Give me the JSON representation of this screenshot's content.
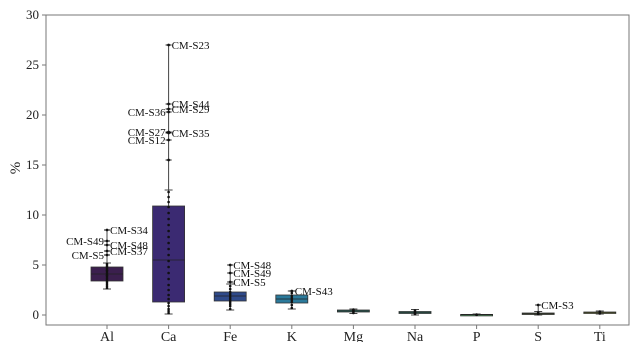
{
  "chart_data": {
    "type": "box",
    "title": "",
    "xlabel": "",
    "ylabel": "%",
    "ylim": [
      0,
      30
    ],
    "yticks": [
      0,
      5,
      10,
      15,
      20,
      25,
      30
    ],
    "grid": false,
    "legend": "none",
    "categories": [
      "Al",
      "Ca",
      "Fe",
      "K",
      "Mg",
      "Na",
      "P",
      "S",
      "Ti"
    ],
    "boxes": [
      {
        "category": "Al",
        "color": "#3b1f4e",
        "whisker_low": 2.6,
        "q1": 3.4,
        "median": 4.1,
        "q3": 4.8,
        "whisker_high": 5.2,
        "points": [
          2.7,
          2.9,
          3.1,
          3.3,
          3.5,
          3.7,
          3.9,
          4.0,
          4.2,
          4.4,
          4.5,
          4.7,
          4.9,
          5.1
        ]
      },
      {
        "category": "Ca",
        "color": "#3b2a72",
        "whisker_low": 0.1,
        "q1": 1.3,
        "median": 5.5,
        "q3": 10.9,
        "whisker_high": 12.5,
        "points": [
          0.2,
          0.4,
          0.6,
          0.9,
          1.2,
          1.6,
          2.0,
          2.5,
          3.0,
          3.6,
          4.2,
          4.8,
          5.4,
          6.0,
          6.6,
          7.2,
          7.8,
          8.4,
          9.0,
          9.6,
          10.2,
          10.8,
          11.3,
          11.8,
          12.3
        ]
      },
      {
        "category": "Fe",
        "color": "#2f4a8a",
        "whisker_low": 0.5,
        "q1": 1.4,
        "median": 1.9,
        "q3": 2.3,
        "whisker_high": 3.1,
        "points": [
          0.6,
          0.9,
          1.1,
          1.3,
          1.5,
          1.7,
          1.9,
          2.1,
          2.3,
          2.6,
          2.9
        ]
      },
      {
        "category": "K",
        "color": "#2b7a9b",
        "whisker_low": 0.6,
        "q1": 1.2,
        "median": 1.6,
        "q3": 2.0,
        "whisker_high": 2.4,
        "points": [
          0.7,
          1.0,
          1.3,
          1.5,
          1.7,
          1.9,
          2.2
        ]
      },
      {
        "category": "Mg",
        "color": "#2a9c8c",
        "whisker_low": 0.15,
        "q1": 0.3,
        "median": 0.4,
        "q3": 0.5,
        "whisker_high": 0.6,
        "points": [
          0.2,
          0.35,
          0.45,
          0.55
        ]
      },
      {
        "category": "Na",
        "color": "#3aa98b",
        "whisker_low": 0.0,
        "q1": 0.15,
        "median": 0.25,
        "q3": 0.35,
        "whisker_high": 0.55,
        "points": [
          0.1,
          0.2,
          0.3,
          0.45
        ]
      },
      {
        "category": "P",
        "color": "#5ab86c",
        "whisker_low": -0.05,
        "q1": 0.0,
        "median": 0.03,
        "q3": 0.06,
        "whisker_high": 0.1,
        "points": [
          0.02,
          0.05
        ]
      },
      {
        "category": "S",
        "color": "#9ccc4e",
        "whisker_low": 0.0,
        "q1": 0.05,
        "median": 0.12,
        "q3": 0.2,
        "whisker_high": 0.35,
        "points": [
          0.1,
          0.25
        ]
      },
      {
        "category": "Ti",
        "color": "#c8d84a",
        "whisker_low": 0.1,
        "q1": 0.2,
        "median": 0.25,
        "q3": 0.3,
        "whisker_high": 0.4,
        "points": [
          0.15,
          0.35
        ]
      }
    ],
    "outliers": [
      {
        "category": "Al",
        "value": 8.5,
        "label": "CM-S34",
        "label_side": "right"
      },
      {
        "category": "Al",
        "value": 7.4,
        "label": "CM-S49",
        "label_side": "left"
      },
      {
        "category": "Al",
        "value": 7.0,
        "label": "CM-S48",
        "label_side": "right"
      },
      {
        "category": "Al",
        "value": 6.4,
        "label": "CM-S37",
        "label_side": "right"
      },
      {
        "category": "Al",
        "value": 6.0,
        "label": "CM-S5",
        "label_side": "left"
      },
      {
        "category": "Ca",
        "value": 27.0,
        "label": "CM-S23",
        "label_side": "right"
      },
      {
        "category": "Ca",
        "value": 21.1,
        "label": "CM-S44",
        "label_side": "right"
      },
      {
        "category": "Ca",
        "value": 20.6,
        "label": "CM-S29",
        "label_side": "right"
      },
      {
        "category": "Ca",
        "value": 20.3,
        "label": "CM-S36",
        "label_side": "left"
      },
      {
        "category": "Ca",
        "value": 18.3,
        "label": "CM-S27",
        "label_side": "left"
      },
      {
        "category": "Ca",
        "value": 18.2,
        "label": "CM-S35",
        "label_side": "right"
      },
      {
        "category": "Ca",
        "value": 17.5,
        "label": "CM-S12",
        "label_side": "left"
      },
      {
        "category": "Ca",
        "value": 15.5,
        "label": "",
        "label_side": "right"
      },
      {
        "category": "Fe",
        "value": 5.0,
        "label": "CM-S48",
        "label_side": "right"
      },
      {
        "category": "Fe",
        "value": 4.2,
        "label": "CM-S49",
        "label_side": "right"
      },
      {
        "category": "Fe",
        "value": 3.3,
        "label": "CM-S5",
        "label_side": "right"
      },
      {
        "category": "K",
        "value": 2.4,
        "label": "CM-S43",
        "label_side": "right"
      },
      {
        "category": "S",
        "value": 1.0,
        "label": "CM-S3",
        "label_side": "right"
      }
    ]
  }
}
